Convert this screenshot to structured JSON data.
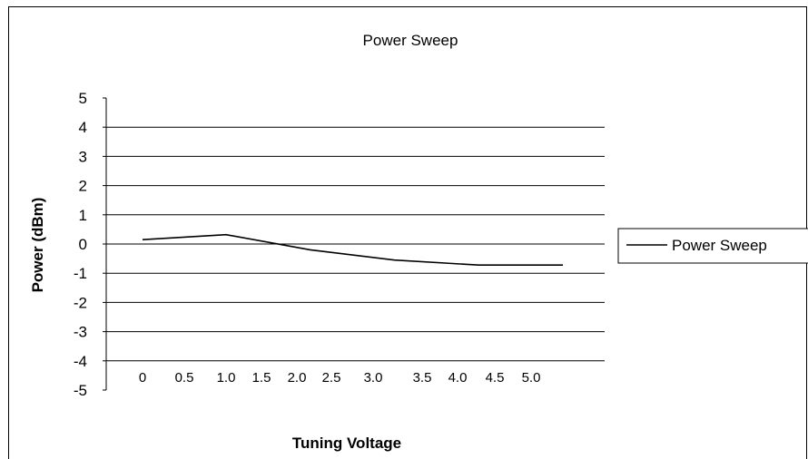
{
  "chart_data": {
    "type": "line",
    "title": "Power Sweep",
    "xlabel": "Tuning Voltage",
    "ylabel": "Power (dBm)",
    "categories": [
      "0",
      "0.5",
      "1.0",
      "1.5",
      "2.0",
      "2.5",
      "3.0",
      "3.5",
      "4.0",
      "4.5",
      "5.0"
    ],
    "ylim": [
      -5,
      5
    ],
    "yticks": [
      "5",
      "4",
      "3",
      "2",
      "1",
      "0",
      "-1",
      "-2",
      "-3",
      "-4",
      "-5"
    ],
    "series": [
      {
        "name": "Power Sweep",
        "points": [
          {
            "x": 0.0,
            "y": 0.15
          },
          {
            "x": 1.0,
            "y": 0.32
          },
          {
            "x": 2.0,
            "y": -0.2
          },
          {
            "x": 3.0,
            "y": -0.55
          },
          {
            "x": 4.0,
            "y": -0.72
          },
          {
            "x": 5.0,
            "y": -0.72
          }
        ]
      }
    ],
    "grid": true,
    "legend_position": "right",
    "colors": {
      "line": "#000000",
      "grid": "#000000",
      "background": "#ffffff"
    }
  }
}
